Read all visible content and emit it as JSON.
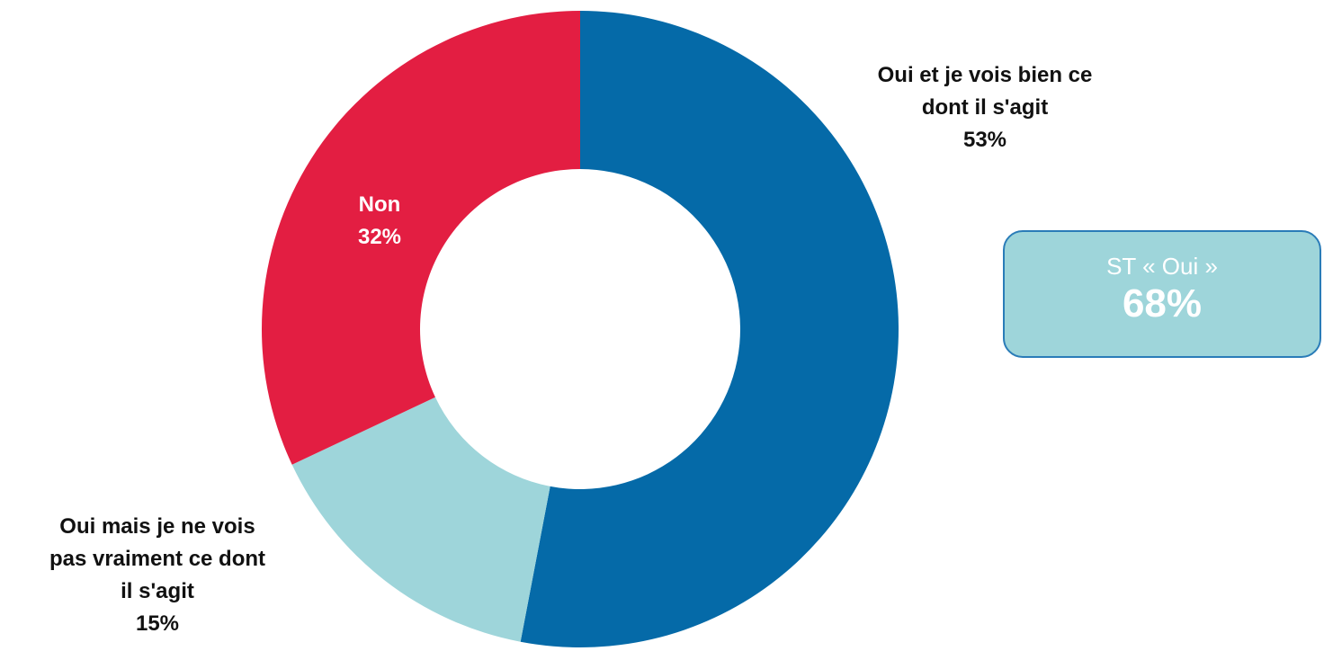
{
  "chart_data": {
    "type": "pie",
    "variant": "donut",
    "slices": [
      {
        "key": "oui_bien",
        "label_lines": [
          "Oui et je vois bien ce",
          "dont il s'agit"
        ],
        "value": 53,
        "value_label": "53%",
        "color": "#056aa8"
      },
      {
        "key": "oui_mais",
        "label_lines": [
          "Oui mais je ne vois",
          "pas vraiment ce dont",
          "il s'agit"
        ],
        "value": 15,
        "value_label": "15%",
        "color": "#9ed5da"
      },
      {
        "key": "non",
        "label_lines": [
          "Non"
        ],
        "value": 32,
        "value_label": "32%",
        "color": "#e31e42"
      }
    ],
    "legend": "none"
  },
  "summary": {
    "title": "ST « Oui »",
    "value": "68%",
    "background_color": "#9ed5da",
    "border_color": "#2a7cb8"
  }
}
